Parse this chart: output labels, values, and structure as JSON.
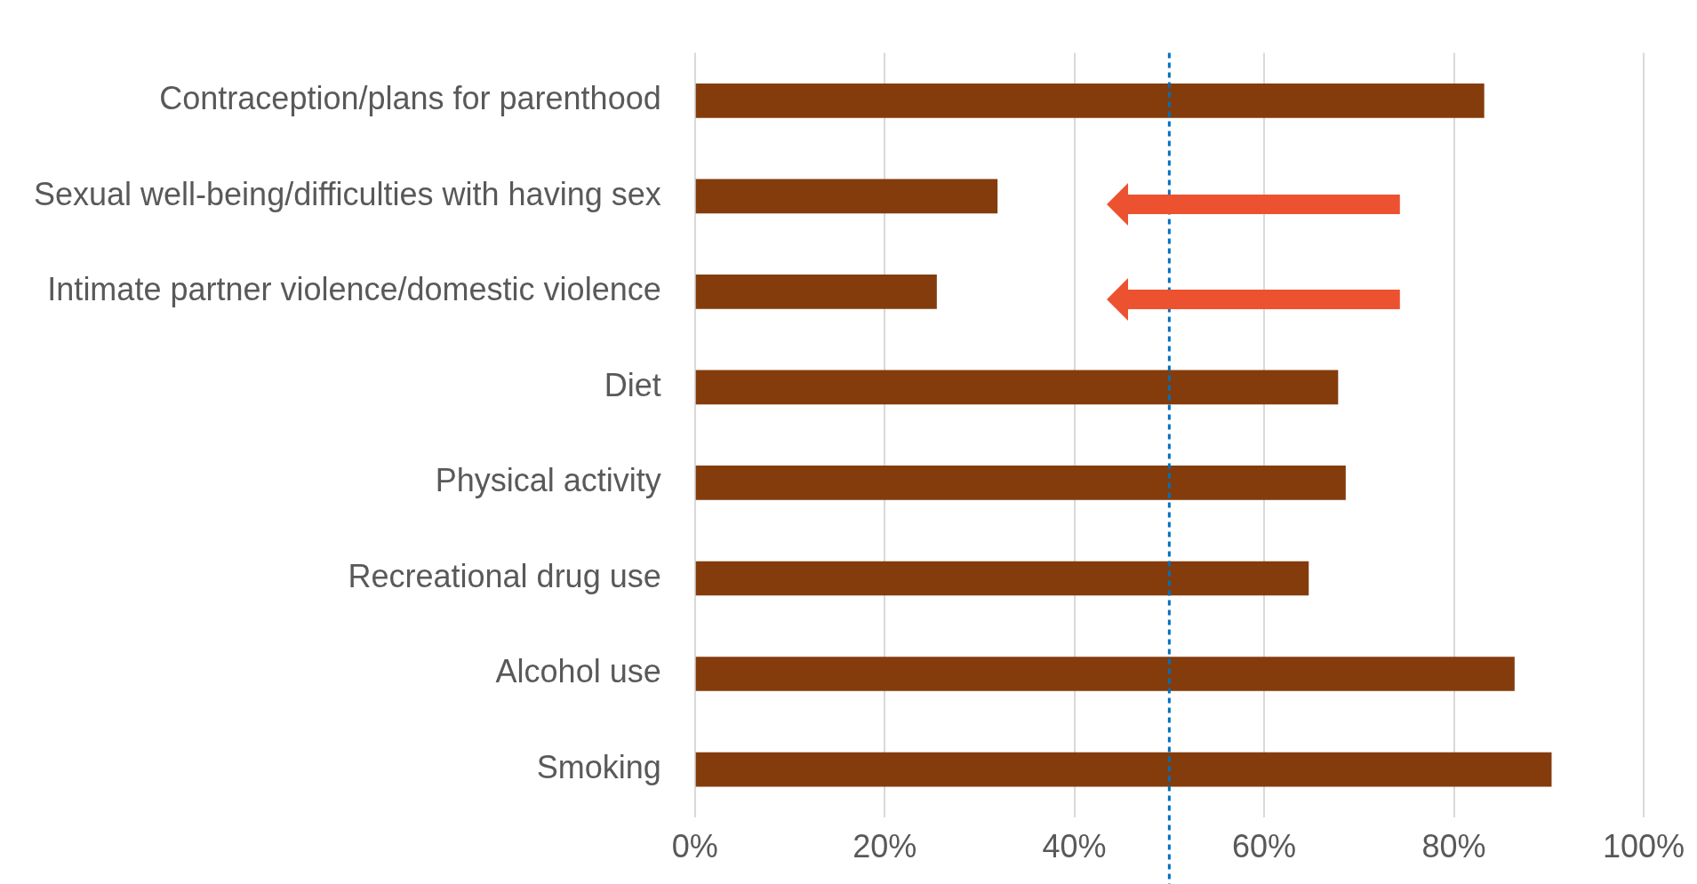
{
  "chart_data": {
    "type": "bar",
    "orientation": "horizontal",
    "categories": [
      "Contraception/plans for parenthood",
      "Sexual well-being/difficulties with having sex",
      "Intimate partner violence/domestic violence",
      "Diet",
      "Physical activity",
      "Recreational drug use",
      "Alcohol use",
      "Smoking"
    ],
    "values": [
      83.2,
      31.9,
      25.5,
      67.8,
      68.6,
      64.7,
      86.4,
      90.3
    ],
    "color": "#843c0c",
    "xlim": [
      0,
      100
    ],
    "xticks": [
      {
        "value": 0,
        "label": "0%"
      },
      {
        "value": 20,
        "label": "20%"
      },
      {
        "value": 40,
        "label": "40%"
      },
      {
        "value": 60,
        "label": "60%"
      },
      {
        "value": 80,
        "label": "80%"
      },
      {
        "value": 100,
        "label": "100%"
      }
    ],
    "grid": "x",
    "legend": false,
    "ref_lines": [
      {
        "axis": "x",
        "value": 50,
        "color": "#0070c0",
        "line_style": "dashed"
      }
    ]
  }
}
